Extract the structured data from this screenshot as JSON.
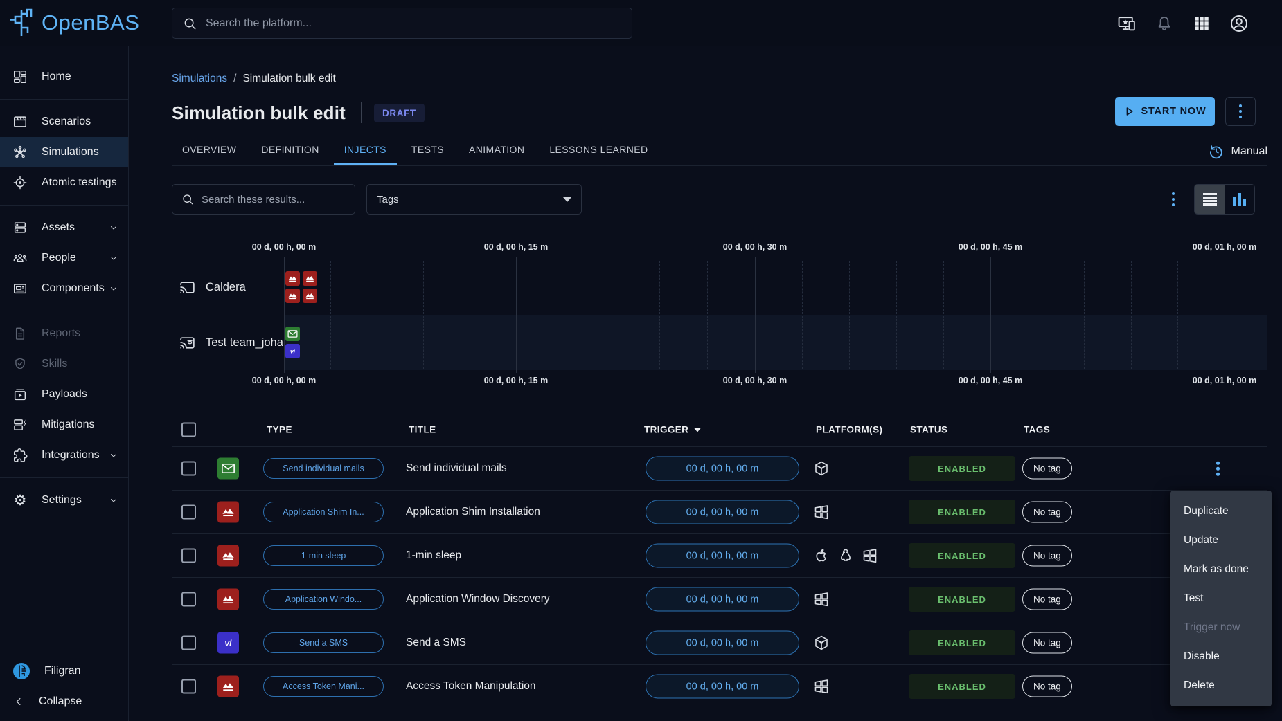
{
  "brand": {
    "name": "OpenBAS",
    "footer_brand": "Filigran",
    "collapse_label": "Collapse"
  },
  "header": {
    "search_placeholder": "Search the platform...",
    "icons": [
      "devices-icon",
      "notifications-icon",
      "apps-grid-icon",
      "account-icon"
    ]
  },
  "sidebar": {
    "items": [
      {
        "label": "Home",
        "icon": "dashboard-icon"
      },
      {
        "label": "Scenarios",
        "icon": "movie-icon"
      },
      {
        "label": "Simulations",
        "icon": "hub-icon",
        "selected": true
      },
      {
        "label": "Atomic testings",
        "icon": "target-icon"
      },
      {
        "label": "Assets",
        "icon": "servers-icon",
        "expandable": true
      },
      {
        "label": "People",
        "icon": "people-icon",
        "expandable": true
      },
      {
        "label": "Components",
        "icon": "newspaper-icon",
        "expandable": true
      },
      {
        "label": "Reports",
        "icon": "report-icon",
        "disabled": true
      },
      {
        "label": "Skills",
        "icon": "shield-check-icon",
        "disabled": true
      },
      {
        "label": "Payloads",
        "icon": "payloads-icon"
      },
      {
        "label": "Mitigations",
        "icon": "mitigations-icon"
      },
      {
        "label": "Integrations",
        "icon": "puzzle-icon",
        "expandable": true
      },
      {
        "label": "Settings",
        "icon": "gear-icon",
        "expandable": true
      }
    ]
  },
  "page": {
    "breadcrumb": {
      "parent": "Simulations",
      "separator": "/",
      "current": "Simulation bulk edit"
    },
    "title": "Simulation bulk edit",
    "status_badge": "DRAFT",
    "start_button": "START NOW",
    "mode_label": "Manual"
  },
  "tabs": [
    {
      "label": "OVERVIEW"
    },
    {
      "label": "DEFINITION"
    },
    {
      "label": "INJECTS",
      "active": true
    },
    {
      "label": "TESTS"
    },
    {
      "label": "ANIMATION"
    },
    {
      "label": "LESSONS LEARNED"
    }
  ],
  "filters": {
    "search_placeholder": "Search these results...",
    "tags_label": "Tags"
  },
  "timeline": {
    "ticks": [
      "00 d, 00 h, 00 m",
      "00 d, 00 h, 15 m",
      "00 d, 00 h, 30 m",
      "00 d, 00 h, 45 m",
      "00 d, 01 h, 00 m"
    ],
    "rows": [
      {
        "label": "Caldera",
        "icon": "cast-icon",
        "injects": [
          "caldera-icon",
          "caldera-icon",
          "caldera-icon",
          "caldera-icon"
        ]
      },
      {
        "label": "Test team_joha",
        "icon": "cast-education-icon",
        "injects": [
          "email-icon",
          "sms-icon"
        ]
      }
    ]
  },
  "table": {
    "headers": {
      "type": "TYPE",
      "title": "TITLE",
      "trigger": "TRIGGER",
      "platforms": "PLATFORM(S)",
      "status": "STATUS",
      "tags": "TAGS"
    },
    "rows": [
      {
        "type_icon": "email-icon",
        "chip": "Send individual mails",
        "title": "Send individual mails",
        "trigger": "00 d, 00 h, 00 m",
        "platforms": [
          "internal"
        ],
        "status": "ENABLED",
        "tag": "No tag"
      },
      {
        "type_icon": "caldera-icon",
        "chip": "Application Shim In...",
        "title": "Application Shim Installation",
        "trigger": "00 d, 00 h, 00 m",
        "platforms": [
          "windows"
        ],
        "status": "ENABLED",
        "tag": "No tag"
      },
      {
        "type_icon": "caldera-icon",
        "chip": "1-min sleep",
        "title": "1-min sleep",
        "trigger": "00 d, 00 h, 00 m",
        "platforms": [
          "macos",
          "linux",
          "windows"
        ],
        "status": "ENABLED",
        "tag": "No tag"
      },
      {
        "type_icon": "caldera-icon",
        "chip": "Application Windo...",
        "title": "Application Window Discovery",
        "trigger": "00 d, 00 h, 00 m",
        "platforms": [
          "windows"
        ],
        "status": "ENABLED",
        "tag": "No tag"
      },
      {
        "type_icon": "sms-icon",
        "chip": "Send a SMS",
        "title": "Send a SMS",
        "trigger": "00 d, 00 h, 00 m",
        "platforms": [
          "internal"
        ],
        "status": "ENABLED",
        "tag": "No tag"
      },
      {
        "type_icon": "caldera-icon",
        "chip": "Access Token Mani...",
        "title": "Access Token Manipulation",
        "trigger": "00 d, 00 h, 00 m",
        "platforms": [
          "windows"
        ],
        "status": "ENABLED",
        "tag": "No tag"
      }
    ]
  },
  "context_menu": {
    "items": [
      {
        "label": "Duplicate"
      },
      {
        "label": "Update"
      },
      {
        "label": "Mark as done"
      },
      {
        "label": "Test"
      },
      {
        "label": "Trigger now",
        "disabled": true
      },
      {
        "label": "Disable"
      },
      {
        "label": "Delete"
      }
    ]
  },
  "colors": {
    "accent": "#5fb1f5",
    "enabled_green": "#66bb6a",
    "draft_blue": "#7b88ee",
    "caldera_red": "#9d201d",
    "email_green": "#2e7d32",
    "sms_indigo": "#3b30c8"
  }
}
